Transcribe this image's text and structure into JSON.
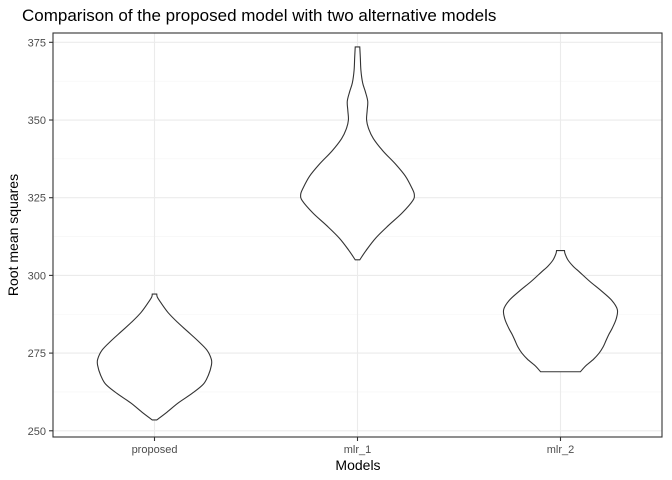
{
  "chart_data": {
    "type": "violin",
    "title": "Comparison of the proposed model with two alternative models",
    "xlabel": "Models",
    "ylabel": "Root mean squares",
    "categories": [
      "proposed",
      "mlr_1",
      "mlr_2"
    ],
    "ylim": [
      248,
      378
    ],
    "yticks": [
      250,
      275,
      300,
      325,
      350,
      375
    ],
    "grid": true,
    "colors": {
      "outline": "#333333",
      "fill": "#ffffff",
      "grid": "#ebebeb"
    },
    "series": [
      {
        "category": "proposed",
        "min": 253.5,
        "max": 294,
        "profile": [
          [
            253.5,
            0.04
          ],
          [
            256,
            0.22
          ],
          [
            259,
            0.42
          ],
          [
            262,
            0.66
          ],
          [
            265,
            0.86
          ],
          [
            268,
            0.95
          ],
          [
            271,
            1.0
          ],
          [
            273,
            1.0
          ],
          [
            276,
            0.92
          ],
          [
            279,
            0.76
          ],
          [
            282,
            0.58
          ],
          [
            285,
            0.4
          ],
          [
            288,
            0.24
          ],
          [
            291,
            0.12
          ],
          [
            293,
            0.05
          ],
          [
            294,
            0.04
          ]
        ]
      },
      {
        "category": "mlr_1",
        "min": 305,
        "max": 373.5,
        "profile": [
          [
            305,
            0.04
          ],
          [
            308,
            0.15
          ],
          [
            312,
            0.32
          ],
          [
            316,
            0.54
          ],
          [
            320,
            0.78
          ],
          [
            324,
            0.97
          ],
          [
            326,
            1.0
          ],
          [
            328,
            0.96
          ],
          [
            332,
            0.84
          ],
          [
            336,
            0.66
          ],
          [
            340,
            0.45
          ],
          [
            344,
            0.28
          ],
          [
            347,
            0.2
          ],
          [
            350,
            0.16
          ],
          [
            353,
            0.17
          ],
          [
            356,
            0.18
          ],
          [
            359,
            0.14
          ],
          [
            362,
            0.09
          ],
          [
            366,
            0.06
          ],
          [
            370,
            0.05
          ],
          [
            373.5,
            0.04
          ]
        ]
      },
      {
        "category": "mlr_2",
        "min": 269,
        "max": 308,
        "profile": [
          [
            269,
            0.35
          ],
          [
            271,
            0.45
          ],
          [
            273,
            0.58
          ],
          [
            275,
            0.68
          ],
          [
            277,
            0.75
          ],
          [
            279,
            0.8
          ],
          [
            281,
            0.85
          ],
          [
            283,
            0.91
          ],
          [
            286,
            0.98
          ],
          [
            289,
            1.0
          ],
          [
            292,
            0.9
          ],
          [
            295,
            0.72
          ],
          [
            298,
            0.52
          ],
          [
            301,
            0.34
          ],
          [
            303,
            0.22
          ],
          [
            305,
            0.13
          ],
          [
            307,
            0.08
          ],
          [
            308,
            0.07
          ]
        ]
      }
    ]
  }
}
